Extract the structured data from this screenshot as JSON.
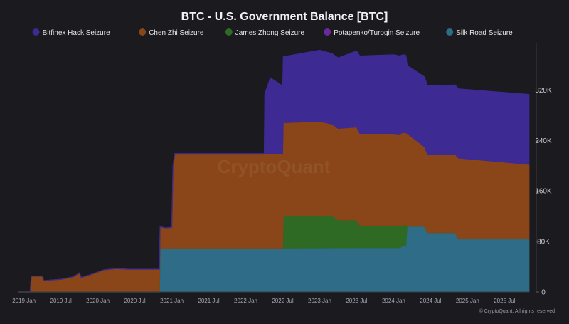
{
  "chart_data": {
    "type": "area",
    "stacked": true,
    "title": "BTC - U.S. Government Balance [BTC]",
    "legend_position": "top",
    "watermark": "CryptoQuant",
    "footer": "© CryptoQuant. All rights reserved",
    "x_ticks": [
      "2019 Jan",
      "2019 Jul",
      "2020 Jan",
      "2020 Jul",
      "2021 Jan",
      "2021 Jul",
      "2022 Jan",
      "2022 Jul",
      "2023 Jan",
      "2023 Jul",
      "2024 Jan",
      "2024 Jul",
      "2025 Jan",
      "2025 Jul"
    ],
    "x_range": [
      "2018-12",
      "2025-11"
    ],
    "y_ticks": [
      0,
      80000,
      160000,
      240000,
      320000
    ],
    "y_tick_labels": [
      "0",
      "80K",
      "160K",
      "240K",
      "320K"
    ],
    "y_range": [
      0,
      395000
    ],
    "y_axis_side": "right",
    "grid": false,
    "colors": {
      "background": "#1b1a1f",
      "Bitfinex Hack Seizure": "#3d2a92",
      "Chen Zhi Seizure": "#8a4518",
      "James Zhong Seizure": "#2e6a24",
      "Potapenko/Turogin Seizure": "#6a2a9a",
      "Silk Road Seizure": "#2e6c88"
    },
    "series": [
      {
        "name": "Silk Road Seizure",
        "points": [
          [
            "2018-12",
            0
          ],
          [
            "2020-11",
            0
          ],
          [
            "2020-11.1",
            69400
          ],
          [
            "2022-07",
            69400
          ],
          [
            "2023-06",
            70000
          ],
          [
            "2024-02",
            70000
          ],
          [
            "2024-02.5",
            73000
          ],
          [
            "2024-03",
            73000
          ],
          [
            "2024-03.2",
            104000
          ],
          [
            "2024-06",
            104000
          ],
          [
            "2024-06.5",
            94000
          ],
          [
            "2024-11",
            94000
          ],
          [
            "2024-11.5",
            84000
          ],
          [
            "2025-11",
            84000
          ]
        ]
      },
      {
        "name": "James Zhong Seizure",
        "points": [
          [
            "2018-12",
            0
          ],
          [
            "2022-07",
            0
          ],
          [
            "2022-07.1",
            51500
          ],
          [
            "2023-01",
            51500
          ],
          [
            "2023-03",
            51000
          ],
          [
            "2023-04",
            44000
          ],
          [
            "2023-07",
            44000
          ],
          [
            "2023-07.5",
            35000
          ],
          [
            "2024-01",
            35000
          ],
          [
            "2024-03",
            33000
          ],
          [
            "2024-03.2",
            0
          ],
          [
            "2025-11",
            0
          ]
        ]
      },
      {
        "name": "Chen Zhi Seizure",
        "points": [
          [
            "2018-12",
            0
          ],
          [
            "2019-02",
            0
          ],
          [
            "2019-02.2",
            25000
          ],
          [
            "2019-04",
            25000
          ],
          [
            "2019-04.2",
            18000
          ],
          [
            "2019-07",
            20000
          ],
          [
            "2019-09",
            24000
          ],
          [
            "2019-10",
            30000
          ],
          [
            "2019-10.3",
            23000
          ],
          [
            "2019-12",
            28000
          ],
          [
            "2020-02",
            35000
          ],
          [
            "2020-04",
            37000
          ],
          [
            "2020-06",
            36000
          ],
          [
            "2020-11",
            36000
          ],
          [
            "2020-11.1",
            34000
          ],
          [
            "2020-12",
            32000
          ],
          [
            "2021-01",
            33000
          ],
          [
            "2021-01.2",
            130000
          ],
          [
            "2021-01.5",
            150000
          ],
          [
            "2022-04",
            150000
          ],
          [
            "2022-04.1",
            150000
          ],
          [
            "2022-07",
            150000
          ],
          [
            "2022-07.1",
            147000
          ],
          [
            "2023-01",
            149000
          ],
          [
            "2023-03",
            145000
          ],
          [
            "2023-04",
            145000
          ],
          [
            "2023-07",
            147000
          ],
          [
            "2023-07.5",
            146000
          ],
          [
            "2024-01",
            146000
          ],
          [
            "2024-03",
            146000
          ],
          [
            "2024-03.2",
            147000
          ],
          [
            "2024-06",
            126000
          ],
          [
            "2024-06.5",
            124000
          ],
          [
            "2024-11",
            124000
          ],
          [
            "2024-11.5",
            128000
          ],
          [
            "2025-11",
            118000
          ]
        ]
      },
      {
        "name": "Potapenko/Turogin Seizure",
        "points": [
          [
            "2018-12",
            0
          ],
          [
            "2025-11",
            0
          ]
        ]
      },
      {
        "name": "Bitfinex Hack Seizure",
        "points": [
          [
            "2018-12",
            0
          ],
          [
            "2022-04",
            0
          ],
          [
            "2022-04.1",
            95000
          ],
          [
            "2022-05",
            120000
          ],
          [
            "2022-07",
            107000
          ],
          [
            "2022-07.1",
            105000
          ],
          [
            "2023-01",
            113000
          ],
          [
            "2023-03",
            112000
          ],
          [
            "2023-04",
            112000
          ],
          [
            "2023-07",
            121000
          ],
          [
            "2023-07.5",
            123000
          ],
          [
            "2024-01",
            125000
          ],
          [
            "2024-03",
            123000
          ],
          [
            "2024-03.2",
            108000
          ],
          [
            "2024-06",
            111000
          ],
          [
            "2024-06.5",
            109000
          ],
          [
            "2024-11",
            110000
          ],
          [
            "2024-11.5",
            110000
          ],
          [
            "2025-11",
            111000
          ]
        ]
      }
    ],
    "legend": [
      {
        "label": "Bitfinex Hack Seizure"
      },
      {
        "label": "Chen Zhi Seizure"
      },
      {
        "label": "James Zhong Seizure"
      },
      {
        "label": "Potapenko/Turogin Seizure"
      },
      {
        "label": "Silk Road Seizure"
      }
    ]
  }
}
